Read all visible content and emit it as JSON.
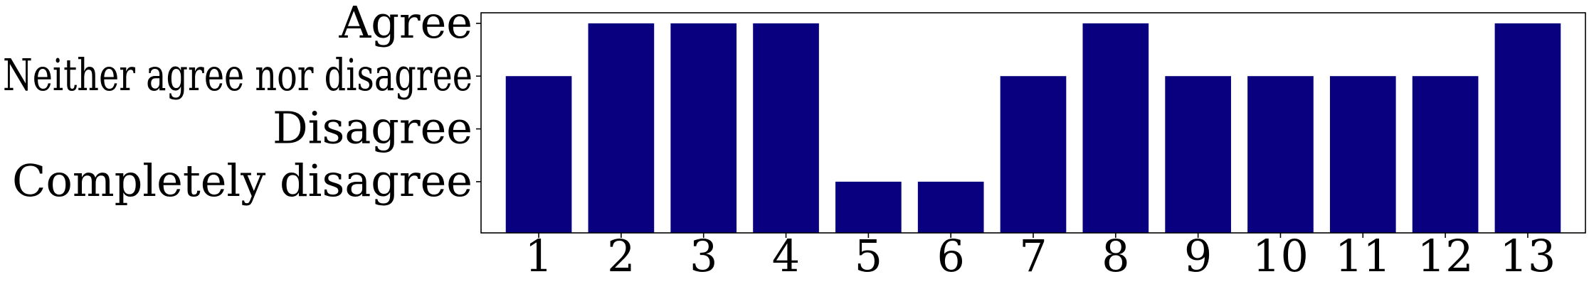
{
  "chart_data": {
    "type": "bar",
    "categories": [
      "1",
      "2",
      "3",
      "4",
      "5",
      "6",
      "7",
      "8",
      "9",
      "10",
      "11",
      "12",
      "13"
    ],
    "values": [
      3,
      4,
      4,
      4,
      1,
      1,
      3,
      4,
      3,
      3,
      3,
      3,
      4
    ],
    "y_ticks": [
      {
        "value": 1,
        "label": "Completely disagree"
      },
      {
        "value": 2,
        "label": "Disagree"
      },
      {
        "value": 3,
        "label": "Neither agree nor disagree"
      },
      {
        "value": 4,
        "label": "Agree"
      }
    ],
    "ylim": [
      0.03,
      4.2
    ],
    "xlabel": "",
    "ylabel": "",
    "title": "",
    "grid": false,
    "bar_color": "#08007f"
  }
}
